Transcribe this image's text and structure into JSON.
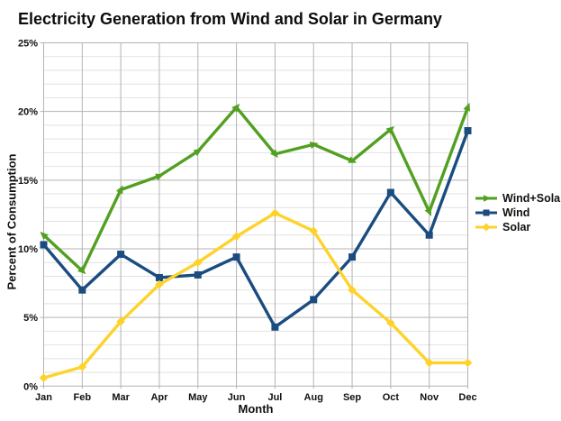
{
  "title": "Electricity Generation from Wind and Solar in Germany",
  "chart_data": {
    "type": "line",
    "title": "Electricity Generation from Wind and Solar in Germany",
    "xlabel": "Month",
    "ylabel": "Percent of Consumption",
    "categories": [
      "Jan",
      "Feb",
      "Mar",
      "Apr",
      "May",
      "Jun",
      "Jul",
      "Aug",
      "Sep",
      "Oct",
      "Nov",
      "Dec"
    ],
    "series": [
      {
        "name": "Wind+Solar",
        "color": "#52a021",
        "marker": "arrow",
        "values": [
          11.0,
          8.4,
          14.3,
          15.3,
          17.1,
          20.3,
          16.9,
          17.6,
          16.4,
          18.7,
          12.7,
          20.3
        ]
      },
      {
        "name": "Wind",
        "color": "#1a4c80",
        "marker": "square",
        "values": [
          10.3,
          7.0,
          9.6,
          7.9,
          8.1,
          9.4,
          4.3,
          6.3,
          9.4,
          14.1,
          11.0,
          18.6
        ]
      },
      {
        "name": "Solar",
        "color": "#fdd32b",
        "marker": "diamond",
        "values": [
          0.6,
          1.4,
          4.7,
          7.4,
          9.0,
          10.9,
          12.6,
          11.3,
          7.0,
          4.6,
          1.7,
          1.7
        ]
      }
    ],
    "ylim": [
      0,
      25
    ],
    "y_major_step": 5,
    "y_minor_step": 1,
    "y_tick_labels": [
      "0%",
      "5%",
      "10%",
      "15%",
      "20%",
      "25%"
    ],
    "grid": true,
    "legend_position": "right"
  },
  "colors": {
    "background": "#ffffff",
    "grid_minor": "#e2e2e2",
    "grid_major": "#b3b3b3",
    "text": "#111111"
  }
}
